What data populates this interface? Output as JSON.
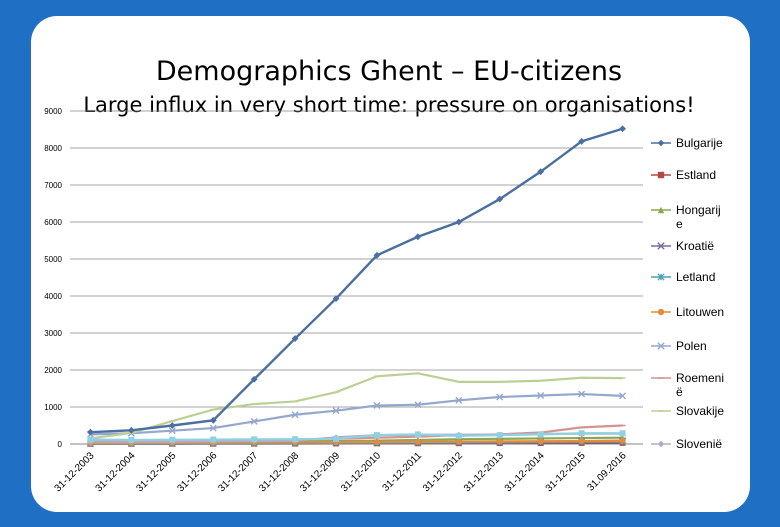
{
  "chart_data": {
    "type": "line",
    "title": "Demographics Ghent – EU-citizens",
    "subtitle": "Large influx in very short time: pressure on organisations!",
    "xlabel": "",
    "ylabel": "",
    "ylim": [
      0,
      9000
    ],
    "yticks": [
      0,
      1000,
      2000,
      3000,
      4000,
      5000,
      6000,
      7000,
      8000,
      9000
    ],
    "grid": true,
    "legend_position": "right",
    "categories": [
      "31-12-2003",
      "31-12-2004",
      "31-12-2005",
      "31-12-2006",
      "31-12-2007",
      "31-12-2008",
      "31-12-2009",
      "31-12-2010",
      "31-12-2011",
      "31-12-2012",
      "31-12-2013",
      "31-12-2014",
      "31-12-2015",
      "31.09.2016"
    ],
    "series": [
      {
        "name": "Bulgarije",
        "color": "#4a6fa0",
        "marker": "diamond",
        "values": [
          320,
          370,
          500,
          640,
          1750,
          2850,
          3930,
          5100,
          5600,
          6000,
          6620,
          7360,
          8180,
          8520
        ]
      },
      {
        "name": "Estland",
        "color": "#b04a47",
        "marker": "square",
        "values": [
          5,
          6,
          7,
          8,
          10,
          12,
          15,
          18,
          20,
          22,
          25,
          27,
          30,
          32
        ]
      },
      {
        "name": "Hongarij\ne",
        "color": "#8ca652",
        "marker": "triangle",
        "values": [
          30,
          35,
          40,
          50,
          60,
          70,
          80,
          90,
          110,
          130,
          140,
          150,
          160,
          170
        ]
      },
      {
        "name": "Kroatië",
        "color": "#7a6a9e",
        "marker": "x",
        "values": [
          10,
          12,
          14,
          16,
          18,
          20,
          22,
          25,
          30,
          35,
          40,
          60,
          80,
          90
        ]
      },
      {
        "name": "Letland",
        "color": "#4a9fb5",
        "marker": "star",
        "values": [
          10,
          12,
          15,
          18,
          20,
          25,
          30,
          35,
          40,
          45,
          50,
          55,
          60,
          65
        ]
      },
      {
        "name": "Litouwen",
        "color": "#e18d3b",
        "marker": "circle",
        "values": [
          20,
          25,
          30,
          35,
          40,
          45,
          50,
          55,
          60,
          65,
          70,
          75,
          80,
          85
        ]
      },
      {
        "name": "Polen",
        "color": "#94a7cc",
        "marker": "x",
        "values": [
          260,
          290,
          360,
          430,
          610,
          790,
          900,
          1040,
          1060,
          1180,
          1270,
          1310,
          1350,
          1300
        ]
      },
      {
        "name": "Roemeni\në",
        "color": "#d39390",
        "marker": "dash",
        "values": [
          60,
          70,
          80,
          90,
          100,
          120,
          140,
          170,
          200,
          240,
          260,
          310,
          450,
          500
        ]
      },
      {
        "name": "Slovakije",
        "color": "#bcd094",
        "marker": "dash",
        "values": [
          150,
          300,
          620,
          930,
          1080,
          1150,
          1400,
          1830,
          1910,
          1680,
          1680,
          1710,
          1790,
          1780
        ]
      },
      {
        "name": "Slovenië",
        "color": "#b2a9c9",
        "marker": "diamond",
        "values": [
          50,
          55,
          60,
          70,
          80,
          90,
          180,
          240,
          250,
          250,
          250,
          270,
          280,
          280
        ]
      },
      {
        "name": "",
        "color": "#8fd1e1",
        "marker": "square",
        "values": [
          120,
          110,
          115,
          120,
          125,
          130,
          140,
          240,
          260,
          220,
          240,
          260,
          290,
          290
        ]
      }
    ]
  }
}
